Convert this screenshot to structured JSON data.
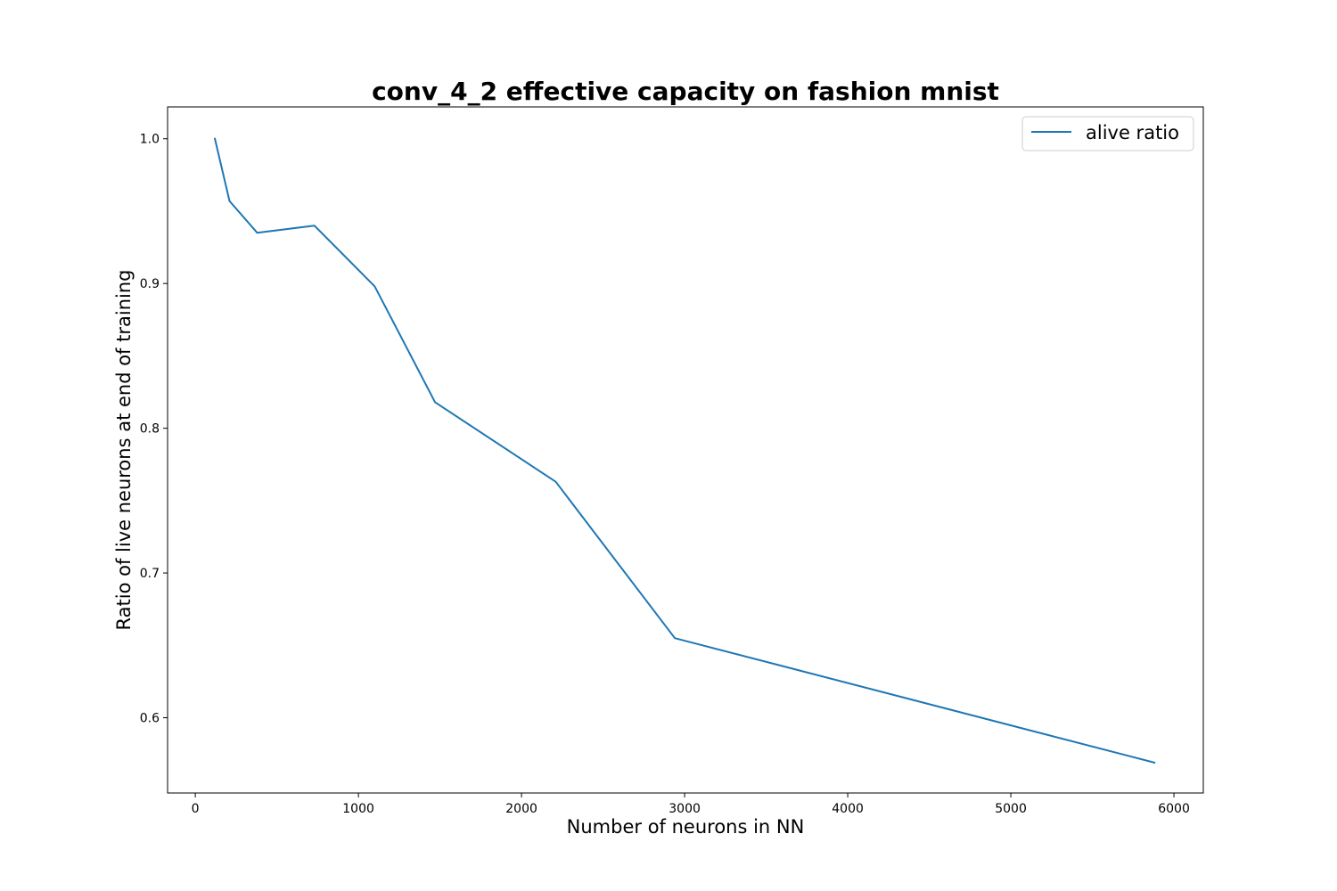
{
  "chart_data": {
    "type": "line",
    "title": "conv_4_2 effective capacity on fashion mnist",
    "xlabel": "Number of neurons in NN",
    "ylabel": "Ratio of live neurons at end of training",
    "xlim": [
      -170,
      6180
    ],
    "ylim": [
      0.548,
      1.022
    ],
    "xticks": [
      0,
      1000,
      2000,
      3000,
      4000,
      5000,
      6000
    ],
    "xtick_labels": [
      "0",
      "1000",
      "2000",
      "3000",
      "4000",
      "5000",
      "6000"
    ],
    "yticks": [
      0.6,
      0.7,
      0.8,
      0.9,
      1.0
    ],
    "ytick_labels": [
      "0.6",
      "0.7",
      "0.8",
      "0.9",
      "1.0"
    ],
    "grid": false,
    "legend_position": "top-right",
    "series": [
      {
        "name": "alive ratio",
        "color": "#1f77b4",
        "x": [
          120,
          210,
          380,
          730,
          1100,
          1470,
          2210,
          2940,
          5880
        ],
        "y": [
          1.0,
          0.957,
          0.935,
          0.94,
          0.898,
          0.818,
          0.763,
          0.655,
          0.569
        ]
      }
    ]
  }
}
